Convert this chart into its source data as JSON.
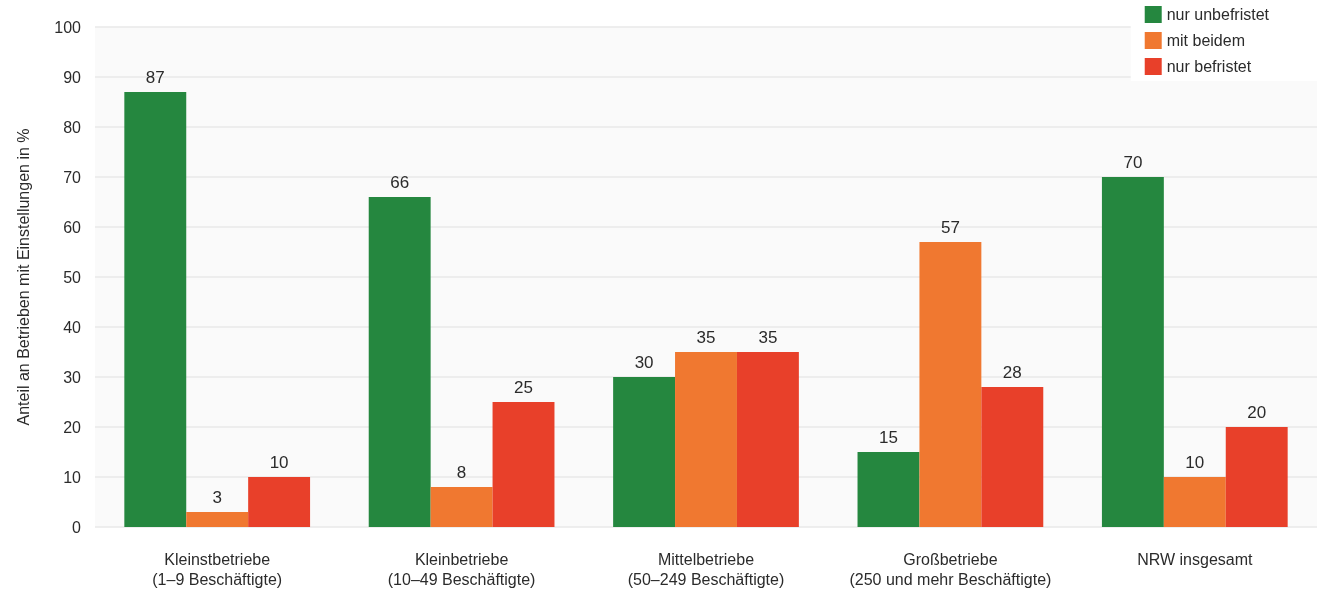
{
  "chart_data": {
    "type": "bar",
    "ylabel": "Anteil an Betrieben mit Einstellungen in %",
    "categories": [
      "Kleinstbetriebe\n(1–9 Beschäftigte)",
      "Kleinbetriebe\n(10–49 Beschäftigte)",
      "Mittelbetriebe\n(50–249 Beschäftigte)",
      "Großbetriebe\n(250 und mehr Beschäftigte)",
      "NRW insgesamt"
    ],
    "series": [
      {
        "name": "nur unbefristet",
        "color": "#25873f",
        "values": [
          87,
          66,
          30,
          15,
          70
        ]
      },
      {
        "name": "mit beidem",
        "color": "#f07830",
        "values": [
          3,
          8,
          35,
          57,
          10
        ]
      },
      {
        "name": "nur befristet",
        "color": "#e8402a",
        "values": [
          10,
          25,
          35,
          28,
          20
        ]
      }
    ],
    "ylim": [
      0,
      100
    ],
    "yticks": [
      0,
      10,
      20,
      30,
      40,
      50,
      60,
      70,
      80,
      90,
      100
    ],
    "grid": "y",
    "legend": "top right",
    "data_labels": true
  }
}
